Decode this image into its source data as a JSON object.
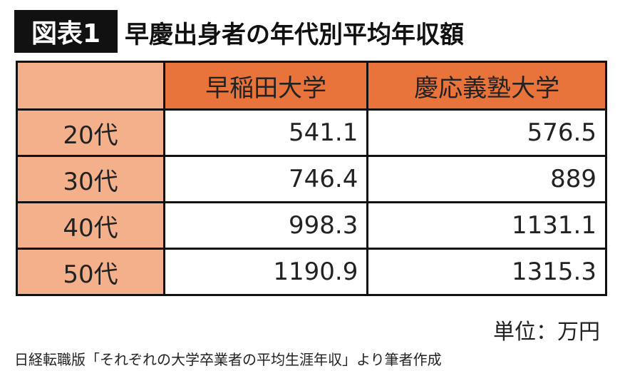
{
  "header": {
    "badge": "図表1",
    "title": "早慶出身者の年代別平均年収額"
  },
  "table": {
    "columns": [
      "早稲田大学",
      "慶応義塾大学"
    ],
    "rows": [
      [
        "20代",
        541.1,
        576.5
      ],
      [
        "30代",
        746.4,
        889
      ],
      [
        "40代",
        998.3,
        1131.1
      ],
      [
        "50代",
        1190.9,
        1315.3
      ]
    ]
  },
  "unit": "単位：万円",
  "source": "日経転職版「それぞれの大学卒業者の平均生涯年収」より筆者作成"
}
